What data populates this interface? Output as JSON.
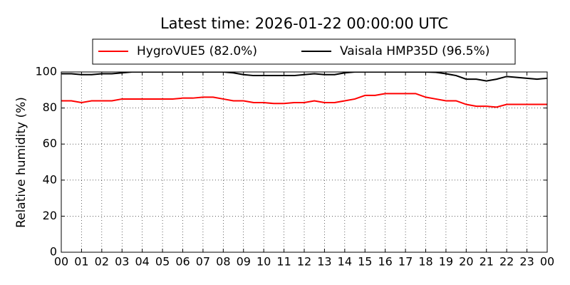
{
  "chart_data": {
    "type": "line",
    "title": "Latest time: 2026-01-22 00:00:00 UTC",
    "y_label": "Relative humidity (%)",
    "x": [
      0,
      0.5,
      1,
      1.5,
      2,
      2.5,
      3,
      3.5,
      4,
      4.5,
      5,
      5.5,
      6,
      6.5,
      7,
      7.5,
      8,
      8.5,
      9,
      9.5,
      10,
      10.5,
      11,
      11.5,
      12,
      12.5,
      13,
      13.5,
      14,
      14.5,
      15,
      15.5,
      16,
      16.5,
      17,
      17.5,
      18,
      18.5,
      19,
      19.5,
      20,
      20.5,
      21,
      21.5,
      22,
      22.5,
      23,
      23.5,
      24
    ],
    "series": [
      {
        "name": "HygroVUE5 (82.0%)",
        "color": "#ff0000",
        "values": [
          84,
          84,
          83,
          84,
          84,
          84,
          85,
          85,
          85,
          85,
          85,
          85,
          85.5,
          85.5,
          86,
          86,
          85,
          84,
          84,
          83,
          83,
          82.5,
          82.5,
          83,
          83,
          84,
          83,
          83,
          84,
          85,
          87,
          87,
          88,
          88,
          88,
          88,
          86,
          85,
          84,
          84,
          82,
          81,
          81,
          80.5,
          82,
          82,
          82,
          82,
          82
        ]
      },
      {
        "name": "Vaisala HMP35D (96.5%)",
        "color": "#000000",
        "values": [
          99,
          99,
          98.5,
          98.5,
          99,
          99,
          99.5,
          100,
          100,
          100,
          100,
          100,
          100,
          100,
          100,
          100,
          100,
          99.5,
          98.5,
          98,
          98,
          98,
          98,
          98,
          98.5,
          99,
          98.5,
          98.5,
          99.5,
          100,
          100,
          100,
          100,
          100,
          100,
          100,
          100,
          99.8,
          99,
          98,
          96,
          96,
          95,
          96,
          97.5,
          97,
          96.5,
          96,
          96.5
        ]
      }
    ],
    "xlim": [
      0,
      24
    ],
    "xticks": [
      {
        "value": 0,
        "label": "00"
      },
      {
        "value": 1,
        "label": "01"
      },
      {
        "value": 2,
        "label": "02"
      },
      {
        "value": 3,
        "label": "03"
      },
      {
        "value": 4,
        "label": "04"
      },
      {
        "value": 5,
        "label": "05"
      },
      {
        "value": 6,
        "label": "06"
      },
      {
        "value": 7,
        "label": "07"
      },
      {
        "value": 8,
        "label": "08"
      },
      {
        "value": 9,
        "label": "09"
      },
      {
        "value": 10,
        "label": "10"
      },
      {
        "value": 11,
        "label": "11"
      },
      {
        "value": 12,
        "label": "12"
      },
      {
        "value": 13,
        "label": "13"
      },
      {
        "value": 14,
        "label": "14"
      },
      {
        "value": 15,
        "label": "15"
      },
      {
        "value": 16,
        "label": "16"
      },
      {
        "value": 17,
        "label": "17"
      },
      {
        "value": 18,
        "label": "18"
      },
      {
        "value": 19,
        "label": "19"
      },
      {
        "value": 20,
        "label": "20"
      },
      {
        "value": 21,
        "label": "21"
      },
      {
        "value": 22,
        "label": "22"
      },
      {
        "value": 23,
        "label": "23"
      },
      {
        "value": 24,
        "label": "00"
      }
    ],
    "ylim": [
      0,
      100
    ],
    "yticks": [
      0,
      20,
      40,
      60,
      80,
      100
    ],
    "grid": true,
    "legend": "top"
  }
}
